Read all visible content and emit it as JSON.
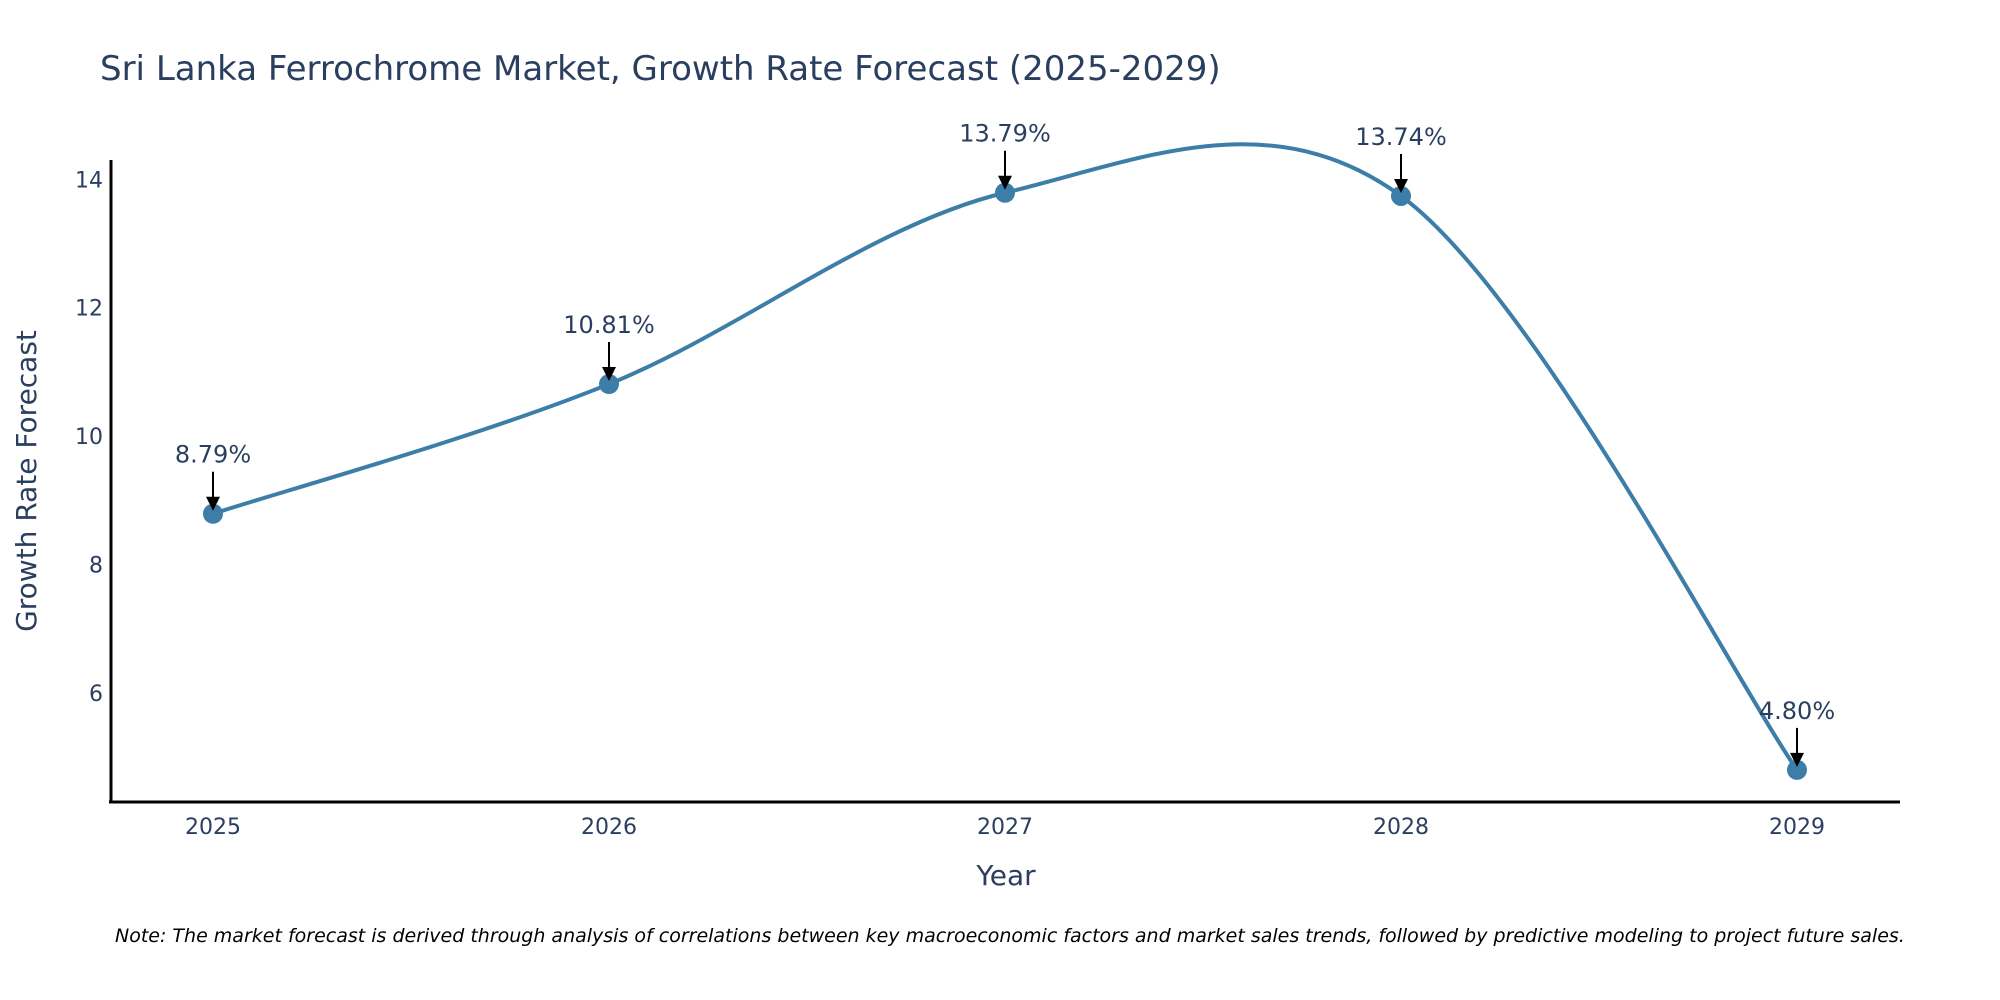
{
  "chart_data": {
    "type": "line",
    "title": "Sri Lanka Ferrochrome Market, Growth Rate Forecast (2025-2029)",
    "xlabel": "Year",
    "ylabel": "Growth Rate Forecast",
    "categories": [
      "2025",
      "2026",
      "2027",
      "2028",
      "2029"
    ],
    "series": [
      {
        "name": "Growth Rate Forecast",
        "values": [
          8.79,
          10.81,
          13.79,
          13.74,
          4.8
        ],
        "labels": [
          "8.79%",
          "10.81%",
          "13.79%",
          "13.74%",
          "4.80%"
        ]
      }
    ],
    "yticks": [
      6,
      8,
      10,
      12,
      14
    ],
    "ylim": [
      4.3,
      14.3
    ],
    "grid": false,
    "legend": "none",
    "line_shape": "spline",
    "colors": {
      "line": "#3d7ea8",
      "marker": "#3d7ea8",
      "arrow": "#000000",
      "axis": "#000000",
      "text": "#2a3f5f"
    },
    "note": "Note: The market forecast is derived through analysis of correlations between key macroeconomic factors and market sales trends, followed by predictive modeling to project future sales."
  }
}
